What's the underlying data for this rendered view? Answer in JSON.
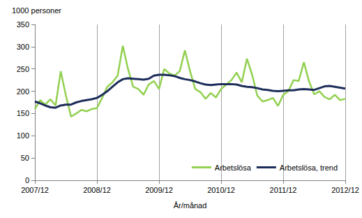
{
  "chart_data": {
    "type": "line",
    "y_label": "1000 personer",
    "x_label": "År/månad",
    "categories": [
      "2007/12",
      null,
      null,
      null,
      null,
      null,
      null,
      null,
      null,
      null,
      null,
      null,
      "2008/12",
      null,
      null,
      null,
      null,
      null,
      null,
      null,
      null,
      null,
      null,
      null,
      "2009/12",
      null,
      null,
      null,
      null,
      null,
      null,
      null,
      null,
      null,
      null,
      null,
      "2010/12",
      null,
      null,
      null,
      null,
      null,
      null,
      null,
      null,
      null,
      null,
      null,
      "2011/12",
      null,
      null,
      null,
      null,
      null,
      null,
      null,
      null,
      null,
      null,
      null,
      "2012/12"
    ],
    "series": [
      {
        "name": "Arbetslösa",
        "color": "#92d050",
        "values": [
          160,
          180,
          170,
          182,
          168,
          245,
          190,
          143,
          150,
          158,
          155,
          160,
          162,
          185,
          210,
          220,
          235,
          302,
          250,
          210,
          205,
          192,
          215,
          223,
          205,
          250,
          240,
          235,
          245,
          292,
          245,
          205,
          198,
          183,
          196,
          186,
          205,
          215,
          225,
          242,
          220,
          273,
          237,
          190,
          177,
          180,
          185,
          167,
          192,
          200,
          225,
          223,
          265,
          222,
          193,
          200,
          187,
          182,
          192,
          180,
          183
        ]
      },
      {
        "name": "Arbetslösa, trend",
        "color": "#1c2d5a",
        "values": [
          177,
          173,
          168,
          164,
          163,
          168,
          170,
          170,
          175,
          178,
          180,
          182,
          185,
          192,
          200,
          210,
          220,
          227,
          229,
          228,
          227,
          226,
          228,
          235,
          237,
          237,
          236,
          234,
          230,
          227,
          225,
          222,
          218,
          215,
          214,
          215,
          216,
          216,
          216,
          215,
          212,
          210,
          209,
          207,
          204,
          203,
          201,
          200,
          201,
          202,
          202,
          204,
          205,
          204,
          203,
          207,
          211,
          212,
          210,
          208,
          206
        ]
      }
    ],
    "ylim": [
      0,
      350
    ],
    "yticks": [
      0,
      50,
      100,
      150,
      200,
      250,
      300,
      350
    ],
    "grid": true,
    "legend": "bottom-right"
  }
}
